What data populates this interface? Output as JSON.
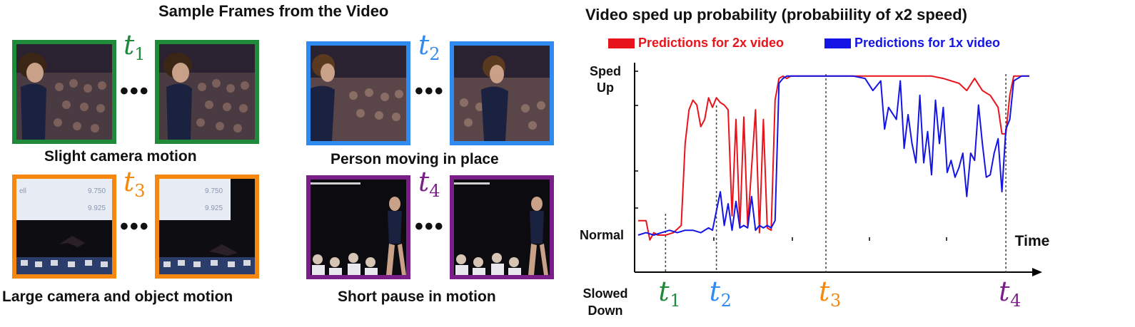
{
  "left_panel": {
    "title": "Sample Frames from the Video",
    "ellipsis": "•••",
    "groups": [
      {
        "tag": "t",
        "sub": "1",
        "caption": "Slight camera motion",
        "color": "#1e8a3a"
      },
      {
        "tag": "t",
        "sub": "2",
        "caption": "Person moving in place",
        "color": "#2f8bf0"
      },
      {
        "tag": "t",
        "sub": "3",
        "caption": "Large camera and object motion",
        "color": "#f5870f"
      },
      {
        "tag": "t",
        "sub": "4",
        "caption": "Short pause in motion",
        "color": "#7a1f88"
      }
    ],
    "scoreboard_text": [
      "ell",
      "9.750",
      "9.925"
    ]
  },
  "chart_data": {
    "type": "line",
    "title": "Video sped up probability (probabiility of x2 speed)",
    "ytick_labels": [
      "Sped Up",
      "Normal",
      "Slowed Down"
    ],
    "xlabel": "Time",
    "x_markers": [
      {
        "label": "t",
        "sub": "1",
        "color": "#1e8a3a",
        "x": 0.07
      },
      {
        "label": "t",
        "sub": "2",
        "color": "#2f8bf0",
        "x": 0.2
      },
      {
        "label": "t",
        "sub": "3",
        "color": "#f5870f",
        "x": 0.48
      },
      {
        "label": "t",
        "sub": "4",
        "color": "#7a1f88",
        "x": 0.94
      }
    ],
    "legend": [
      {
        "name": "Predictions for 2x video",
        "color": "#e8141c"
      },
      {
        "name": "Predictions for 1x video",
        "color": "#1414e6"
      }
    ],
    "ylim": [
      0,
      1
    ],
    "series": [
      {
        "name": "Predictions for 2x video",
        "color": "#e8141c",
        "x": [
          0,
          0.02,
          0.03,
          0.04,
          0.05,
          0.07,
          0.09,
          0.11,
          0.12,
          0.13,
          0.14,
          0.15,
          0.16,
          0.17,
          0.18,
          0.19,
          0.2,
          0.21,
          0.22,
          0.23,
          0.24,
          0.25,
          0.26,
          0.27,
          0.28,
          0.29,
          0.3,
          0.31,
          0.32,
          0.33,
          0.34,
          0.35,
          0.36,
          0.37,
          0.38,
          0.39,
          0.4,
          0.42,
          0.45,
          0.5,
          0.55,
          0.6,
          0.65,
          0.7,
          0.75,
          0.78,
          0.8,
          0.82,
          0.84,
          0.86,
          0.88,
          0.9,
          0.92,
          0.93,
          0.94,
          0.95,
          0.96,
          0.97,
          0.98,
          1
        ],
        "y": [
          0.38,
          0.38,
          0.3,
          0.33,
          0.32,
          0.32,
          0.33,
          0.36,
          0.7,
          0.84,
          0.88,
          0.86,
          0.77,
          0.8,
          0.89,
          0.85,
          0.89,
          0.87,
          0.86,
          0.84,
          0.4,
          0.8,
          0.35,
          0.81,
          0.36,
          0.6,
          0.84,
          0.33,
          0.8,
          0.35,
          0.34,
          0.88,
          0.97,
          0.98,
          0.97,
          0.98,
          0.98,
          0.98,
          0.98,
          0.98,
          0.98,
          0.98,
          0.98,
          0.98,
          0.98,
          0.97,
          0.96,
          0.95,
          0.92,
          0.97,
          0.92,
          0.9,
          0.85,
          0.74,
          0.74,
          0.9,
          0.98,
          0.98,
          0.98,
          0.98
        ]
      },
      {
        "name": "Predictions for 1x video",
        "color": "#1414e6",
        "x": [
          0,
          0.02,
          0.04,
          0.06,
          0.08,
          0.1,
          0.12,
          0.14,
          0.16,
          0.18,
          0.19,
          0.2,
          0.21,
          0.22,
          0.23,
          0.24,
          0.25,
          0.26,
          0.27,
          0.28,
          0.29,
          0.3,
          0.31,
          0.32,
          0.33,
          0.34,
          0.35,
          0.36,
          0.37,
          0.38,
          0.4,
          0.45,
          0.5,
          0.55,
          0.58,
          0.6,
          0.62,
          0.63,
          0.64,
          0.66,
          0.67,
          0.68,
          0.69,
          0.7,
          0.71,
          0.72,
          0.73,
          0.74,
          0.75,
          0.76,
          0.77,
          0.78,
          0.79,
          0.8,
          0.81,
          0.82,
          0.83,
          0.84,
          0.85,
          0.86,
          0.87,
          0.88,
          0.89,
          0.9,
          0.91,
          0.92,
          0.93,
          0.94,
          0.95,
          0.96,
          0.97,
          0.98,
          1
        ],
        "y": [
          0.32,
          0.33,
          0.32,
          0.33,
          0.34,
          0.33,
          0.34,
          0.34,
          0.33,
          0.35,
          0.34,
          0.42,
          0.5,
          0.36,
          0.45,
          0.34,
          0.46,
          0.35,
          0.36,
          0.35,
          0.48,
          0.34,
          0.36,
          0.35,
          0.36,
          0.35,
          0.38,
          0.95,
          0.97,
          0.98,
          0.98,
          0.98,
          0.98,
          0.98,
          0.97,
          0.92,
          0.96,
          0.76,
          0.85,
          0.8,
          0.96,
          0.68,
          0.82,
          0.7,
          0.62,
          0.9,
          0.62,
          0.75,
          0.57,
          0.88,
          0.7,
          0.85,
          0.58,
          0.63,
          0.56,
          0.6,
          0.66,
          0.48,
          0.66,
          0.63,
          0.86,
          0.7,
          0.56,
          0.57,
          0.66,
          0.72,
          0.5,
          0.76,
          0.8,
          0.96,
          0.97,
          0.98,
          0.98
        ]
      }
    ]
  }
}
